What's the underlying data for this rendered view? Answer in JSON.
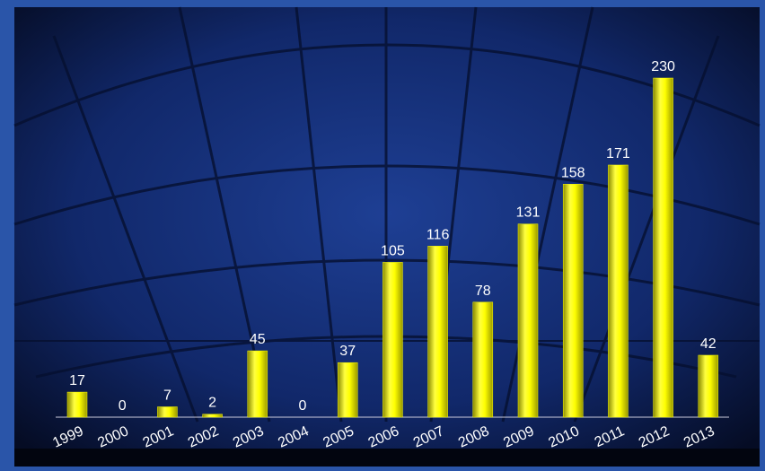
{
  "chart_data": {
    "type": "bar",
    "categories": [
      "1999",
      "2000",
      "2001",
      "2002",
      "2003",
      "2004",
      "2005",
      "2006",
      "2007",
      "2008",
      "2009",
      "2010",
      "2011",
      "2012",
      "2013"
    ],
    "values": [
      17,
      0,
      7,
      2,
      45,
      0,
      37,
      105,
      116,
      78,
      131,
      158,
      171,
      230,
      42
    ],
    "color": "#ffff00"
  }
}
